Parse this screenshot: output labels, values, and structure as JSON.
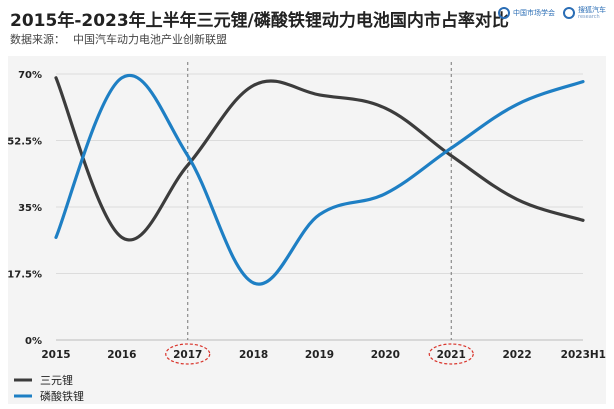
{
  "header": {
    "title": "2015年-2023年上半年三元锂/磷酸铁锂动力电池国内市占率对比",
    "source_label": "数据来源：",
    "source_text": "中国汽车动力电池产业创新联盟"
  },
  "logos": {
    "logo1_name": "中国市场学会",
    "logo2_name": "搜狐汽车",
    "logo2_sub": "research"
  },
  "colors": {
    "ternary": "#3c3c3c",
    "lfp": "#1e7fc4",
    "panel": "#f4f4f4",
    "grid": "#dcdcdc",
    "highlight": "#d9342b"
  },
  "chart_data": {
    "type": "line",
    "categories": [
      "2015",
      "2016",
      "2017",
      "2018",
      "2019",
      "2020",
      "2021",
      "2022",
      "2023H1"
    ],
    "highlighted_categories": [
      "2017",
      "2021"
    ],
    "y_ticks": [
      "0%",
      "17.5%",
      "35%",
      "52.5%",
      "70%"
    ],
    "y_tick_values": [
      0,
      17.5,
      35,
      52.5,
      70
    ],
    "ylim": [
      0,
      70
    ],
    "series": [
      {
        "name": "三元锂",
        "color": "#3c3c3c",
        "values": [
          69,
          27,
          46,
          67,
          64.5,
          61,
          48.5,
          37,
          31.5
        ]
      },
      {
        "name": "磷酸铁锂",
        "color": "#1e7fc4",
        "values": [
          27,
          69,
          48.5,
          15,
          33,
          38.5,
          50.5,
          62,
          68
        ]
      }
    ],
    "grid_horizontal": true,
    "legend_position": "bottom-left"
  }
}
